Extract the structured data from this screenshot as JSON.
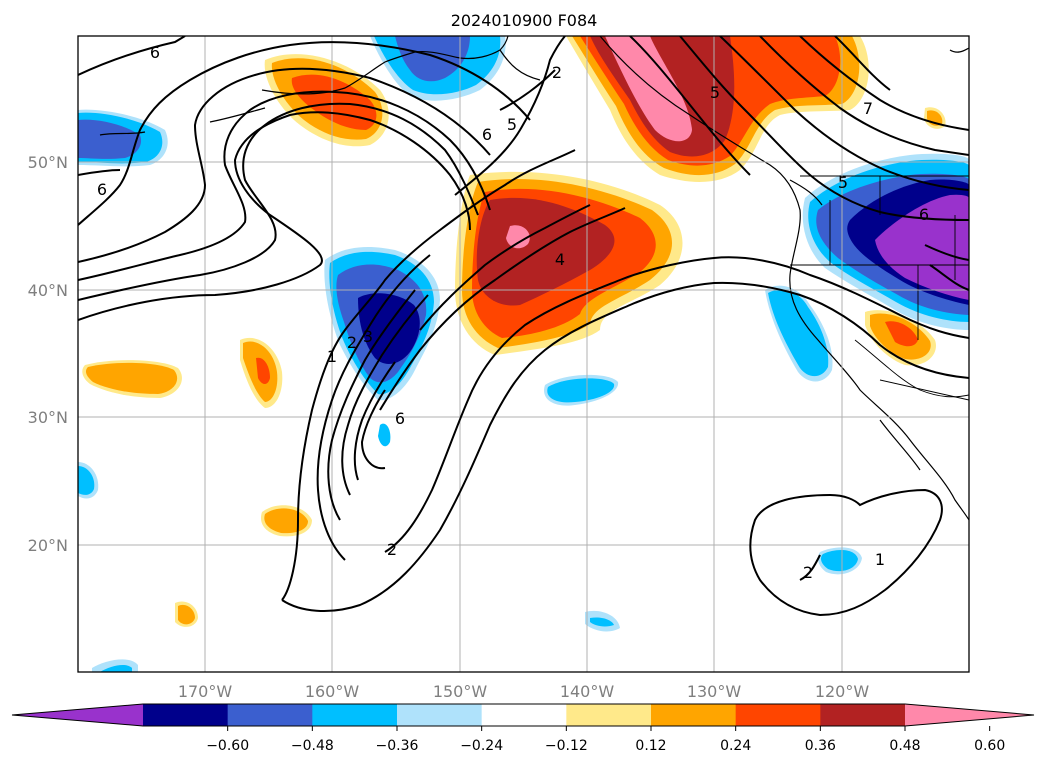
{
  "map": {
    "title": "2024010900 F084",
    "lon_labels": [
      "170°W",
      "160°W",
      "150°W",
      "140°W",
      "130°W",
      "120°W"
    ],
    "lat_labels": [
      "50°N",
      "40°N",
      "30°N",
      "20°N"
    ],
    "lon_range": [
      "180°W",
      "110°W"
    ],
    "lat_range": [
      "10°N",
      "60°N"
    ],
    "gridlines": true,
    "contour_labels": [
      "6",
      "6",
      "2",
      "5",
      "6",
      "4",
      "1",
      "2",
      "3",
      "6",
      "5",
      "5",
      "7",
      "6",
      "2",
      "1",
      "2"
    ]
  },
  "colorbar": {
    "extend": "both",
    "tick_labels": [
      "−0.60",
      "−0.48",
      "−0.36",
      "−0.24",
      "−0.12",
      "0.12",
      "0.24",
      "0.36",
      "0.48",
      "0.60"
    ],
    "colors": [
      "#9932cc",
      "#00008b",
      "#3b5fcf",
      "#00bfff",
      "#afe2fb",
      "#ffffff",
      "#ffe98a",
      "#ffa500",
      "#ff4500",
      "#b22222",
      "#ff88aa"
    ]
  }
}
